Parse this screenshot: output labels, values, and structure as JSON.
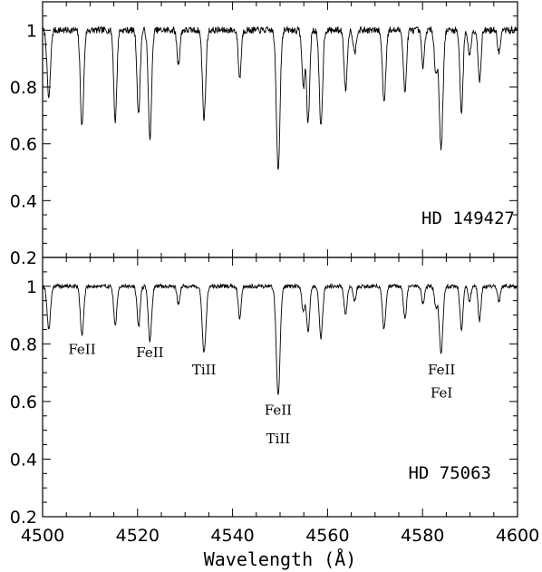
{
  "chart_data": {
    "type": "line",
    "xlabel": "Wavelength (Å)",
    "xlim": [
      4500,
      4600
    ],
    "x_ticks": [
      "4500",
      "4520",
      "4540",
      "4560",
      "4580",
      "4600"
    ],
    "panels": [
      {
        "star": "HD 149427",
        "ylim": [
          0.2,
          1.1
        ],
        "y_ticks": [
          "0.2",
          "0.4",
          "0.6",
          "0.8",
          "1"
        ],
        "continuum": 1.0,
        "absorption_lines": [
          {
            "wavelength": 4501.3,
            "depth": 0.24,
            "width": 0.35
          },
          {
            "wavelength": 4508.3,
            "depth": 0.34,
            "width": 0.35
          },
          {
            "wavelength": 4515.3,
            "depth": 0.32,
            "width": 0.32
          },
          {
            "wavelength": 4520.2,
            "depth": 0.3,
            "width": 0.32
          },
          {
            "wavelength": 4522.6,
            "depth": 0.38,
            "width": 0.35
          },
          {
            "wavelength": 4528.6,
            "depth": 0.12,
            "width": 0.3
          },
          {
            "wavelength": 4534.0,
            "depth": 0.31,
            "width": 0.35
          },
          {
            "wavelength": 4541.5,
            "depth": 0.17,
            "width": 0.3
          },
          {
            "wavelength": 4549.6,
            "depth": 0.49,
            "width": 0.38
          },
          {
            "wavelength": 4554.9,
            "depth": 0.2,
            "width": 0.3
          },
          {
            "wavelength": 4555.9,
            "depth": 0.33,
            "width": 0.32
          },
          {
            "wavelength": 4558.6,
            "depth": 0.34,
            "width": 0.35
          },
          {
            "wavelength": 4563.8,
            "depth": 0.21,
            "width": 0.32
          },
          {
            "wavelength": 4565.7,
            "depth": 0.08,
            "width": 0.3
          },
          {
            "wavelength": 4571.9,
            "depth": 0.25,
            "width": 0.35
          },
          {
            "wavelength": 4576.3,
            "depth": 0.22,
            "width": 0.32
          },
          {
            "wavelength": 4580.1,
            "depth": 0.13,
            "width": 0.3
          },
          {
            "wavelength": 4582.8,
            "depth": 0.15,
            "width": 0.3
          },
          {
            "wavelength": 4583.9,
            "depth": 0.42,
            "width": 0.38
          },
          {
            "wavelength": 4588.2,
            "depth": 0.29,
            "width": 0.32
          },
          {
            "wavelength": 4589.9,
            "depth": 0.09,
            "width": 0.3
          },
          {
            "wavelength": 4592.0,
            "depth": 0.18,
            "width": 0.3
          },
          {
            "wavelength": 4596.1,
            "depth": 0.08,
            "width": 0.3
          }
        ]
      },
      {
        "star": "HD 75063",
        "ylim": [
          0.2,
          1.1
        ],
        "y_ticks": [
          "0.2",
          "0.4",
          "0.6",
          "0.8",
          "1"
        ],
        "continuum": 1.0,
        "absorption_lines": [
          {
            "wavelength": 4501.3,
            "depth": 0.15,
            "width": 0.35
          },
          {
            "wavelength": 4508.3,
            "depth": 0.17,
            "width": 0.35
          },
          {
            "wavelength": 4515.3,
            "depth": 0.14,
            "width": 0.32
          },
          {
            "wavelength": 4520.2,
            "depth": 0.14,
            "width": 0.32
          },
          {
            "wavelength": 4522.6,
            "depth": 0.19,
            "width": 0.35
          },
          {
            "wavelength": 4528.6,
            "depth": 0.06,
            "width": 0.3
          },
          {
            "wavelength": 4534.0,
            "depth": 0.23,
            "width": 0.4
          },
          {
            "wavelength": 4541.5,
            "depth": 0.11,
            "width": 0.3
          },
          {
            "wavelength": 4549.6,
            "depth": 0.38,
            "width": 0.4
          },
          {
            "wavelength": 4554.9,
            "depth": 0.09,
            "width": 0.3
          },
          {
            "wavelength": 4555.9,
            "depth": 0.16,
            "width": 0.32
          },
          {
            "wavelength": 4558.6,
            "depth": 0.18,
            "width": 0.35
          },
          {
            "wavelength": 4563.8,
            "depth": 0.1,
            "width": 0.32
          },
          {
            "wavelength": 4565.7,
            "depth": 0.05,
            "width": 0.3
          },
          {
            "wavelength": 4571.9,
            "depth": 0.15,
            "width": 0.35
          },
          {
            "wavelength": 4576.3,
            "depth": 0.11,
            "width": 0.32
          },
          {
            "wavelength": 4580.1,
            "depth": 0.06,
            "width": 0.3
          },
          {
            "wavelength": 4582.8,
            "depth": 0.07,
            "width": 0.3
          },
          {
            "wavelength": 4583.9,
            "depth": 0.23,
            "width": 0.38
          },
          {
            "wavelength": 4588.2,
            "depth": 0.15,
            "width": 0.32
          },
          {
            "wavelength": 4589.9,
            "depth": 0.05,
            "width": 0.3
          },
          {
            "wavelength": 4592.0,
            "depth": 0.12,
            "width": 0.3
          },
          {
            "wavelength": 4596.1,
            "depth": 0.05,
            "width": 0.3
          }
        ]
      }
    ],
    "line_identifications": [
      {
        "text": "FeII",
        "wavelength": 4508.3,
        "flux": 0.78
      },
      {
        "text": "FeII",
        "wavelength": 4522.6,
        "flux": 0.77
      },
      {
        "text": "TiII",
        "wavelength": 4534.0,
        "flux": 0.71
      },
      {
        "text": "FeII",
        "wavelength": 4549.6,
        "flux": 0.57
      },
      {
        "text": "TiII",
        "wavelength": 4549.6,
        "flux": 0.47
      },
      {
        "text": "FeII",
        "wavelength": 4584.0,
        "flux": 0.71
      },
      {
        "text": "FeI",
        "wavelength": 4584.0,
        "flux": 0.63
      }
    ]
  }
}
